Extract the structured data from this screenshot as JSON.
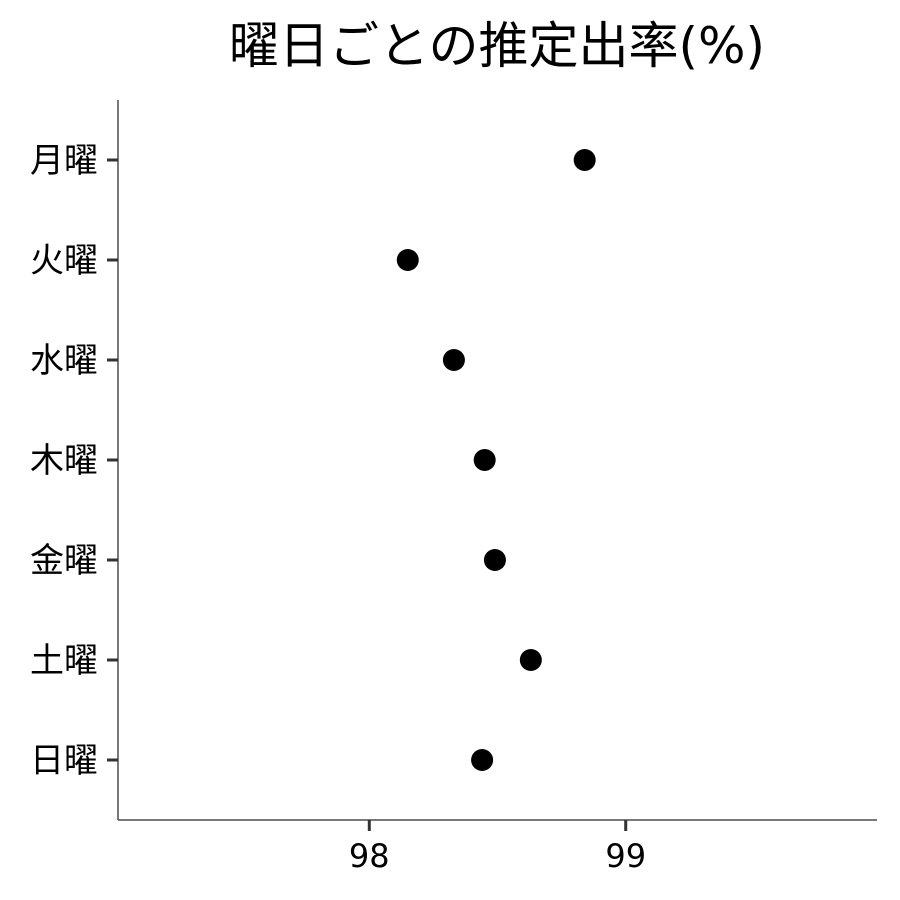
{
  "chart_data": {
    "type": "scatter",
    "title": "曜日ごとの推定出率(%)",
    "xlabel": "",
    "ylabel": "",
    "categories": [
      "月曜",
      "火曜",
      "水曜",
      "木曜",
      "金曜",
      "土曜",
      "日曜"
    ],
    "values": [
      98.84,
      98.15,
      98.33,
      98.45,
      98.49,
      98.63,
      98.44
    ],
    "xlim": [
      97.02,
      99.98
    ],
    "xticks": [
      "98",
      "99"
    ],
    "grid": false,
    "legend": "none",
    "point_color": "#000000"
  }
}
